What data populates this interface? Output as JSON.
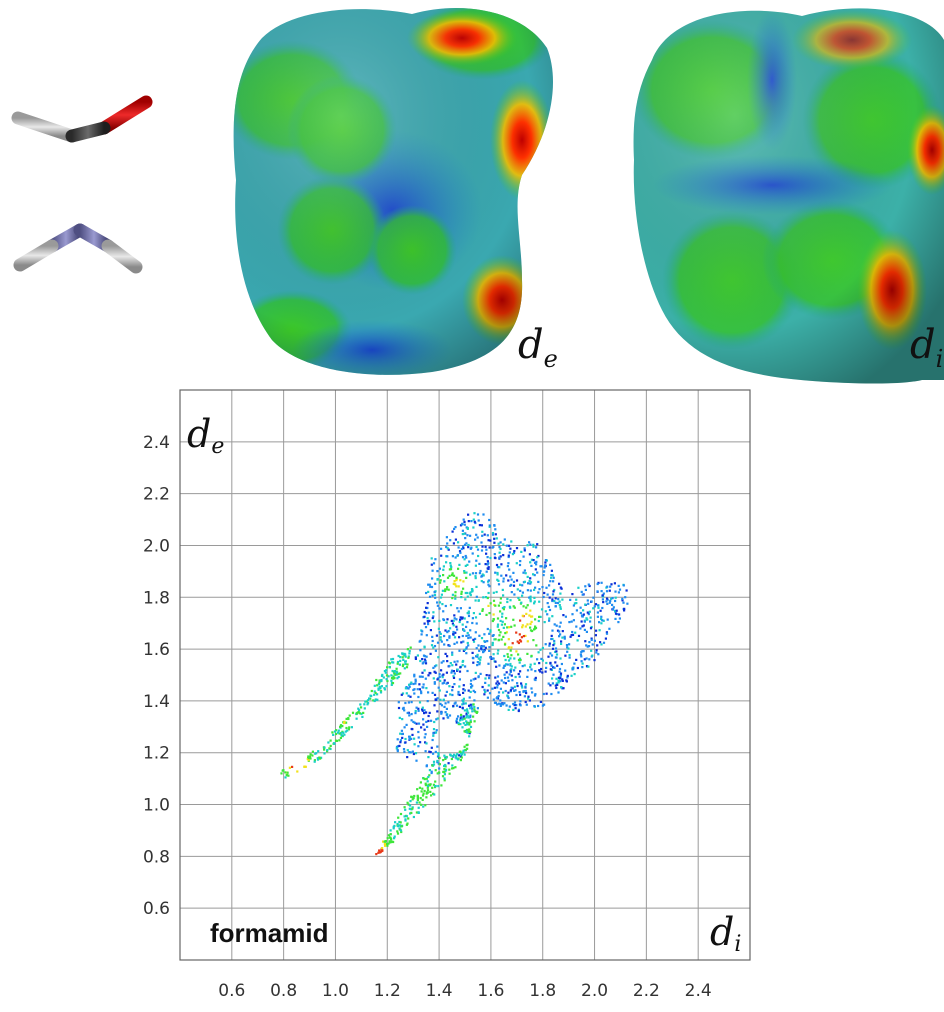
{
  "surfaces": {
    "de_label_main": "d",
    "de_label_sub": "e",
    "di_label_main": "d",
    "di_label_sub": "i"
  },
  "chart_data": {
    "type": "scatter",
    "title": "formamid",
    "xlabel_main": "d",
    "xlabel_sub": "i",
    "ylabel_main": "d",
    "ylabel_sub": "e",
    "xlim": [
      0.4,
      2.6
    ],
    "ylim": [
      0.4,
      2.6
    ],
    "grid": true,
    "x_ticks": [
      "0.6",
      "0.8",
      "1.0",
      "1.2",
      "1.4",
      "1.6",
      "1.8",
      "2.0",
      "2.2",
      "2.4"
    ],
    "y_ticks": [
      "0.6",
      "0.8",
      "1.0",
      "1.2",
      "1.4",
      "1.6",
      "1.8",
      "2.0",
      "2.2",
      "2.4"
    ],
    "colormap": [
      "#0a2fd8",
      "#1f8cf0",
      "#19d0c8",
      "#3ee63a",
      "#f2e21b",
      "#e83a1a"
    ],
    "regions": [
      {
        "name": "main body",
        "polygon": [
          [
            1.22,
            1.22
          ],
          [
            1.36,
            1.12
          ],
          [
            1.5,
            1.2
          ],
          [
            1.56,
            1.42
          ],
          [
            1.68,
            1.36
          ],
          [
            1.8,
            1.38
          ],
          [
            2.0,
            1.55
          ],
          [
            2.15,
            1.8
          ],
          [
            2.12,
            1.86
          ],
          [
            1.98,
            1.86
          ],
          [
            1.88,
            1.82
          ],
          [
            1.78,
            2.02
          ],
          [
            1.68,
            2.02
          ],
          [
            1.58,
            2.12
          ],
          [
            1.52,
            2.14
          ],
          [
            1.44,
            2.06
          ],
          [
            1.36,
            1.95
          ],
          [
            1.34,
            1.8
          ],
          [
            1.3,
            1.55
          ],
          [
            1.24,
            1.4
          ]
        ],
        "density": 1.0
      },
      {
        "name": "left spike",
        "polygon": [
          [
            0.78,
            1.13
          ],
          [
            0.9,
            1.2
          ],
          [
            1.1,
            1.4
          ],
          [
            1.2,
            1.56
          ],
          [
            1.3,
            1.62
          ],
          [
            1.27,
            1.52
          ],
          [
            1.1,
            1.34
          ],
          [
            0.92,
            1.16
          ],
          [
            0.8,
            1.1
          ]
        ],
        "density": 2.0
      },
      {
        "name": "right spike",
        "polygon": [
          [
            1.12,
            0.78
          ],
          [
            1.22,
            0.86
          ],
          [
            1.36,
            1.02
          ],
          [
            1.5,
            1.2
          ],
          [
            1.56,
            1.42
          ],
          [
            1.48,
            1.36
          ],
          [
            1.38,
            1.18
          ],
          [
            1.24,
            0.96
          ],
          [
            1.14,
            0.8
          ]
        ],
        "density": 2.0
      }
    ],
    "hotspots": [
      {
        "x": 1.46,
        "y": 1.86,
        "value": 0.7
      },
      {
        "x": 1.6,
        "y": 1.76,
        "value": 0.65
      },
      {
        "x": 1.72,
        "y": 1.72,
        "value": 0.8
      },
      {
        "x": 1.7,
        "y": 1.64,
        "value": 0.95
      },
      {
        "x": 0.84,
        "y": 1.17,
        "value": 0.9
      },
      {
        "x": 1.16,
        "y": 0.82,
        "value": 0.9
      },
      {
        "x": 1.02,
        "y": 1.33,
        "value": 0.6
      },
      {
        "x": 1.32,
        "y": 1.05,
        "value": 0.6
      }
    ]
  }
}
